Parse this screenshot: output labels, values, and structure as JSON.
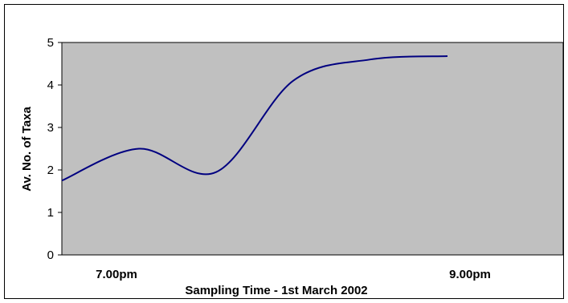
{
  "chart_data": {
    "type": "line",
    "title": "",
    "xlabel": "Sampling Time - 1st March 2002",
    "ylabel": "Av. No. of Taxa",
    "x_tick_labels": [
      "7.00pm",
      "9.00pm"
    ],
    "y_tick_labels": [
      "0",
      "1",
      "2",
      "3",
      "4",
      "5"
    ],
    "ylim": [
      0,
      5
    ],
    "grid": false,
    "legend": "none",
    "colors": {
      "plot_area": "#c0c0c0",
      "line": "#000080"
    },
    "series": [
      {
        "x": [
          0,
          1,
          2,
          3,
          4,
          5
        ],
        "values": [
          1.75,
          2.5,
          1.95,
          4.1,
          4.6,
          4.68
        ]
      }
    ]
  }
}
